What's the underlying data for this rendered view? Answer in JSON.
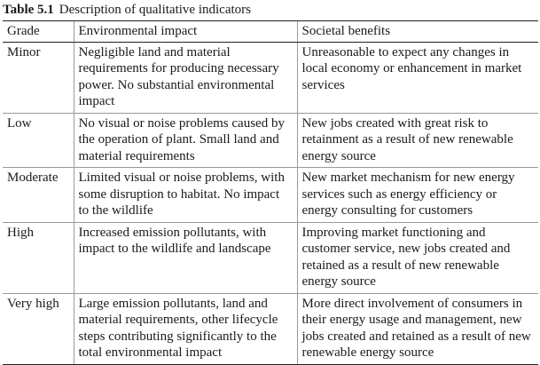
{
  "caption": {
    "number": "Table 5.1",
    "title": "Description of qualitative indicators"
  },
  "table": {
    "headers": [
      "Grade",
      "Environmental impact",
      "Societal benefits"
    ],
    "rows": [
      {
        "grade": "Minor",
        "environmental": "Negligible land and material requirements for producing necessary power. No substantial environmental impact",
        "societal": "Unreasonable to expect any changes in local economy or enhancement in market services"
      },
      {
        "grade": "Low",
        "environmental": "No visual or noise problems caused by the operation of plant. Small land and material requirements",
        "societal": "New jobs created with great risk to retainment as a result of new renewable energy source"
      },
      {
        "grade": "Moderate",
        "environmental": "Limited visual or noise problems, with some disruption to habitat. No impact to the wildlife",
        "societal": "New market mechanism for new energy services such as energy efficiency or energy consulting for customers"
      },
      {
        "grade": "High",
        "environmental": "Increased emission pollutants, with impact to the wildlife and landscape",
        "societal": "Improving market functioning and customer service, new jobs created and retained as a result of new renewable energy source"
      },
      {
        "grade": "Very high",
        "environmental": "Large emission pollutants, land and material requirements, other lifecycle steps contributing significantly to the total environmental impact",
        "societal": "More direct involvement of consumers in their energy usage and management, new jobs created and retained as a result of new renewable energy source"
      }
    ]
  }
}
